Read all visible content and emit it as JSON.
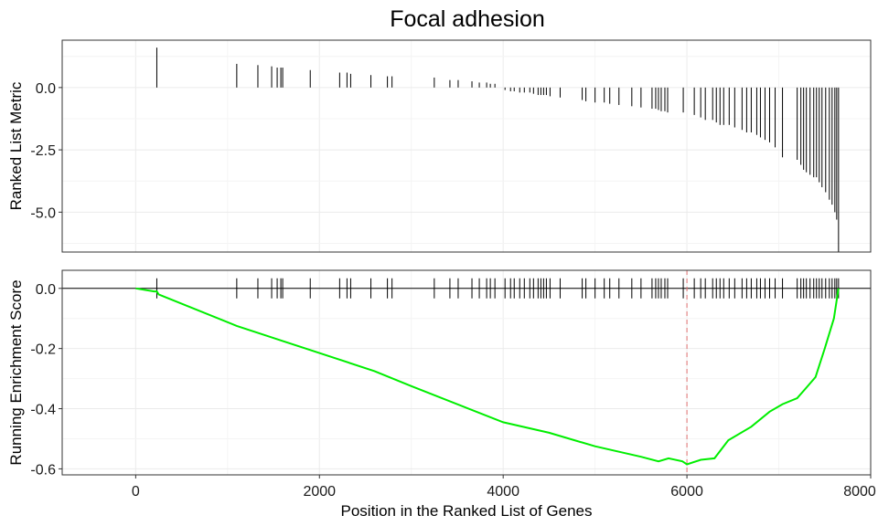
{
  "chart_data": [
    {
      "type": "bar",
      "title": "Focal adhesion",
      "ylabel": "Ranked List Metric",
      "xlim": [
        -800,
        8000
      ],
      "ylim": [
        -6.6,
        1.9
      ],
      "yticks": [
        0.0,
        -2.5,
        -5.0
      ],
      "ytick_labels": [
        "0.0",
        "-2.5",
        "-5.0"
      ],
      "grid": true,
      "points": [
        [
          230,
          1.6
        ],
        [
          1100,
          0.95
        ],
        [
          1330,
          0.9
        ],
        [
          1480,
          0.85
        ],
        [
          1540,
          0.8
        ],
        [
          1580,
          0.8
        ],
        [
          1600,
          0.8
        ],
        [
          1900,
          0.7
        ],
        [
          2220,
          0.6
        ],
        [
          2300,
          0.6
        ],
        [
          2340,
          0.55
        ],
        [
          2560,
          0.5
        ],
        [
          2740,
          0.45
        ],
        [
          2790,
          0.45
        ],
        [
          3250,
          0.4
        ],
        [
          3420,
          0.3
        ],
        [
          3510,
          0.3
        ],
        [
          3660,
          0.25
        ],
        [
          3740,
          0.2
        ],
        [
          3820,
          0.2
        ],
        [
          3860,
          0.15
        ],
        [
          3910,
          0.15
        ],
        [
          4020,
          -0.1
        ],
        [
          4080,
          -0.15
        ],
        [
          4120,
          -0.15
        ],
        [
          4180,
          -0.2
        ],
        [
          4230,
          -0.2
        ],
        [
          4290,
          -0.2
        ],
        [
          4330,
          -0.25
        ],
        [
          4380,
          -0.3
        ],
        [
          4410,
          -0.3
        ],
        [
          4440,
          -0.3
        ],
        [
          4470,
          -0.3
        ],
        [
          4510,
          -0.35
        ],
        [
          4620,
          -0.4
        ],
        [
          4860,
          -0.5
        ],
        [
          4900,
          -0.55
        ],
        [
          5000,
          -0.6
        ],
        [
          5100,
          -0.6
        ],
        [
          5160,
          -0.65
        ],
        [
          5260,
          -0.7
        ],
        [
          5400,
          -0.75
        ],
        [
          5500,
          -0.8
        ],
        [
          5620,
          -0.85
        ],
        [
          5660,
          -0.85
        ],
        [
          5690,
          -0.9
        ],
        [
          5720,
          -0.95
        ],
        [
          5760,
          -0.95
        ],
        [
          5790,
          -1.0
        ],
        [
          5960,
          -1.0
        ],
        [
          6080,
          -1.1
        ],
        [
          6150,
          -1.2
        ],
        [
          6200,
          -1.3
        ],
        [
          6280,
          -1.3
        ],
        [
          6320,
          -1.4
        ],
        [
          6360,
          -1.5
        ],
        [
          6400,
          -1.5
        ],
        [
          6460,
          -1.5
        ],
        [
          6520,
          -1.6
        ],
        [
          6600,
          -1.7
        ],
        [
          6650,
          -1.8
        ],
        [
          6700,
          -1.8
        ],
        [
          6760,
          -1.9
        ],
        [
          6800,
          -2.0
        ],
        [
          6850,
          -2.1
        ],
        [
          6900,
          -2.2
        ],
        [
          6960,
          -2.4
        ],
        [
          7040,
          -2.8
        ],
        [
          7200,
          -2.9
        ],
        [
          7240,
          -3.1
        ],
        [
          7270,
          -3.3
        ],
        [
          7300,
          -3.4
        ],
        [
          7340,
          -3.5
        ],
        [
          7380,
          -3.6
        ],
        [
          7410,
          -3.6
        ],
        [
          7440,
          -3.8
        ],
        [
          7470,
          -4.0
        ],
        [
          7510,
          -4.2
        ],
        [
          7550,
          -4.5
        ],
        [
          7580,
          -4.7
        ],
        [
          7610,
          -5.0
        ],
        [
          7630,
          -5.3
        ],
        [
          7650,
          -6.6
        ]
      ]
    },
    {
      "type": "line",
      "ylabel": "Running Enrichment Score",
      "xlabel": "Position in the Ranked List of Genes",
      "xlim": [
        -800,
        8000
      ],
      "ylim": [
        -0.62,
        0.06
      ],
      "xticks": [
        0,
        2000,
        4000,
        6000,
        8000
      ],
      "xtick_labels": [
        "0",
        "2000",
        "4000",
        "6000",
        "8000"
      ],
      "yticks": [
        0.0,
        -0.2,
        -0.4,
        -0.6
      ],
      "ytick_labels": [
        "0.0",
        "-0.2",
        "-0.4",
        "-0.6"
      ],
      "grid": true,
      "line_color": "#00ee00",
      "marker_color": "#000000",
      "vline_x": 6000,
      "vline_color": "#e07070",
      "hline_y": 0,
      "curve": [
        [
          0,
          0.0
        ],
        [
          200,
          -0.01
        ],
        [
          230,
          -0.01
        ],
        [
          250,
          -0.02
        ],
        [
          1100,
          -0.125
        ],
        [
          1400,
          -0.155
        ],
        [
          1600,
          -0.175
        ],
        [
          2200,
          -0.235
        ],
        [
          2600,
          -0.275
        ],
        [
          3000,
          -0.325
        ],
        [
          4000,
          -0.445
        ],
        [
          4500,
          -0.48
        ],
        [
          5000,
          -0.525
        ],
        [
          5500,
          -0.56
        ],
        [
          5690,
          -0.575
        ],
        [
          5800,
          -0.565
        ],
        [
          5950,
          -0.575
        ],
        [
          6000,
          -0.585
        ],
        [
          6150,
          -0.57
        ],
        [
          6300,
          -0.565
        ],
        [
          6450,
          -0.505
        ],
        [
          6700,
          -0.46
        ],
        [
          6900,
          -0.41
        ],
        [
          7040,
          -0.385
        ],
        [
          7200,
          -0.365
        ],
        [
          7300,
          -0.33
        ],
        [
          7400,
          -0.295
        ],
        [
          7500,
          -0.2
        ],
        [
          7600,
          -0.1
        ],
        [
          7650,
          0.0
        ]
      ]
    }
  ]
}
